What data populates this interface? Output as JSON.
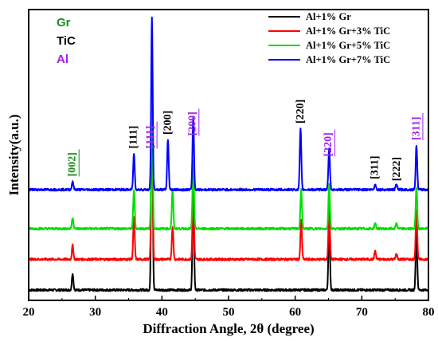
{
  "chart_data": {
    "type": "line",
    "title": "",
    "xlabel": "Diffraction Angle, 2θ (degree)",
    "ylabel": "Intensity(a.u.)",
    "xlim": [
      20,
      80
    ],
    "xticks": [
      "20",
      "30",
      "40",
      "50",
      "60",
      "70",
      "80"
    ],
    "yticks_shown": false,
    "grid": false,
    "legend_position": "top-right",
    "phase_key": [
      {
        "text": "Gr",
        "color": "#1a8c1a"
      },
      {
        "text": "TiC",
        "color": "#000000"
      },
      {
        "text": "Al",
        "color": "#a020f0"
      }
    ],
    "series": [
      {
        "name": "Al+1% Gr",
        "color": "#000000",
        "baseline": 0.0,
        "peaks": [
          [
            26.6,
            0.06
          ],
          [
            38.5,
            0.8
          ],
          [
            44.7,
            0.38
          ],
          [
            65.1,
            0.25
          ],
          [
            78.2,
            0.22
          ]
        ]
      },
      {
        "name": "Al+1% Gr+3% TiC",
        "color": "#ff0000",
        "baseline": 0.11,
        "peaks": [
          [
            26.6,
            0.05
          ],
          [
            35.8,
            0.15
          ],
          [
            38.5,
            0.55
          ],
          [
            41.6,
            0.12
          ],
          [
            44.7,
            0.26
          ],
          [
            60.9,
            0.14
          ],
          [
            65.1,
            0.19
          ],
          [
            72.0,
            0.03
          ],
          [
            75.2,
            0.02
          ],
          [
            78.2,
            0.18
          ]
        ]
      },
      {
        "name": "Al+1% Gr+5% TiC",
        "color": "#00e000",
        "baseline": 0.22,
        "peaks": [
          [
            26.6,
            0.04
          ],
          [
            35.8,
            0.14
          ],
          [
            38.5,
            0.48
          ],
          [
            41.6,
            0.14
          ],
          [
            44.7,
            0.24
          ],
          [
            60.9,
            0.14
          ],
          [
            65.1,
            0.16
          ],
          [
            72.0,
            0.02
          ],
          [
            75.2,
            0.02
          ],
          [
            78.2,
            0.15
          ]
        ]
      },
      {
        "name": "Al+1% Gr+7% TiC",
        "color": "#0000ff",
        "baseline": 0.36,
        "peaks": [
          [
            26.6,
            0.03
          ],
          [
            35.8,
            0.13
          ],
          [
            38.5,
            0.62
          ],
          [
            40.9,
            0.18
          ],
          [
            44.7,
            0.26
          ],
          [
            60.8,
            0.22
          ],
          [
            65.1,
            0.15
          ],
          [
            72.0,
            0.02
          ],
          [
            75.2,
            0.02
          ],
          [
            78.2,
            0.16
          ]
        ]
      }
    ],
    "peak_labels": [
      {
        "text": "[002]",
        "x": 26.6,
        "color": "#1a8c1a"
      },
      {
        "text": "[111]",
        "x": 35.8,
        "color": "#000000"
      },
      {
        "text": "[111]",
        "x": 38.3,
        "color": "#a020f0"
      },
      {
        "text": "[200]",
        "x": 40.9,
        "color": "#000000"
      },
      {
        "text": "[200]",
        "x": 44.6,
        "color": "#a020f0"
      },
      {
        "text": "[220]",
        "x": 60.8,
        "color": "#000000"
      },
      {
        "text": "[220]",
        "x": 65.0,
        "color": "#a020f0"
      },
      {
        "text": "[311]",
        "x": 72.0,
        "color": "#000000"
      },
      {
        "text": "[222]",
        "x": 75.3,
        "color": "#000000"
      },
      {
        "text": "[311]",
        "x": 78.2,
        "color": "#a020f0"
      }
    ]
  }
}
